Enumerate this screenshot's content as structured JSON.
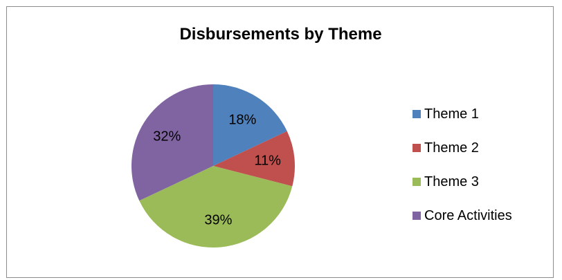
{
  "chart_data": {
    "type": "pie",
    "title": "Disbursements by Theme",
    "series": [
      {
        "name": "Theme 1",
        "value": 18,
        "label": "18%",
        "color": "#4f81bd"
      },
      {
        "name": "Theme 2",
        "value": 11,
        "label": "11%",
        "color": "#c0504d"
      },
      {
        "name": "Theme 3",
        "value": 39,
        "label": "39%",
        "color": "#9bbb59"
      },
      {
        "name": "Core Activities",
        "value": 32,
        "label": "32%",
        "color": "#8064a2"
      }
    ],
    "legend_placement": "right"
  }
}
